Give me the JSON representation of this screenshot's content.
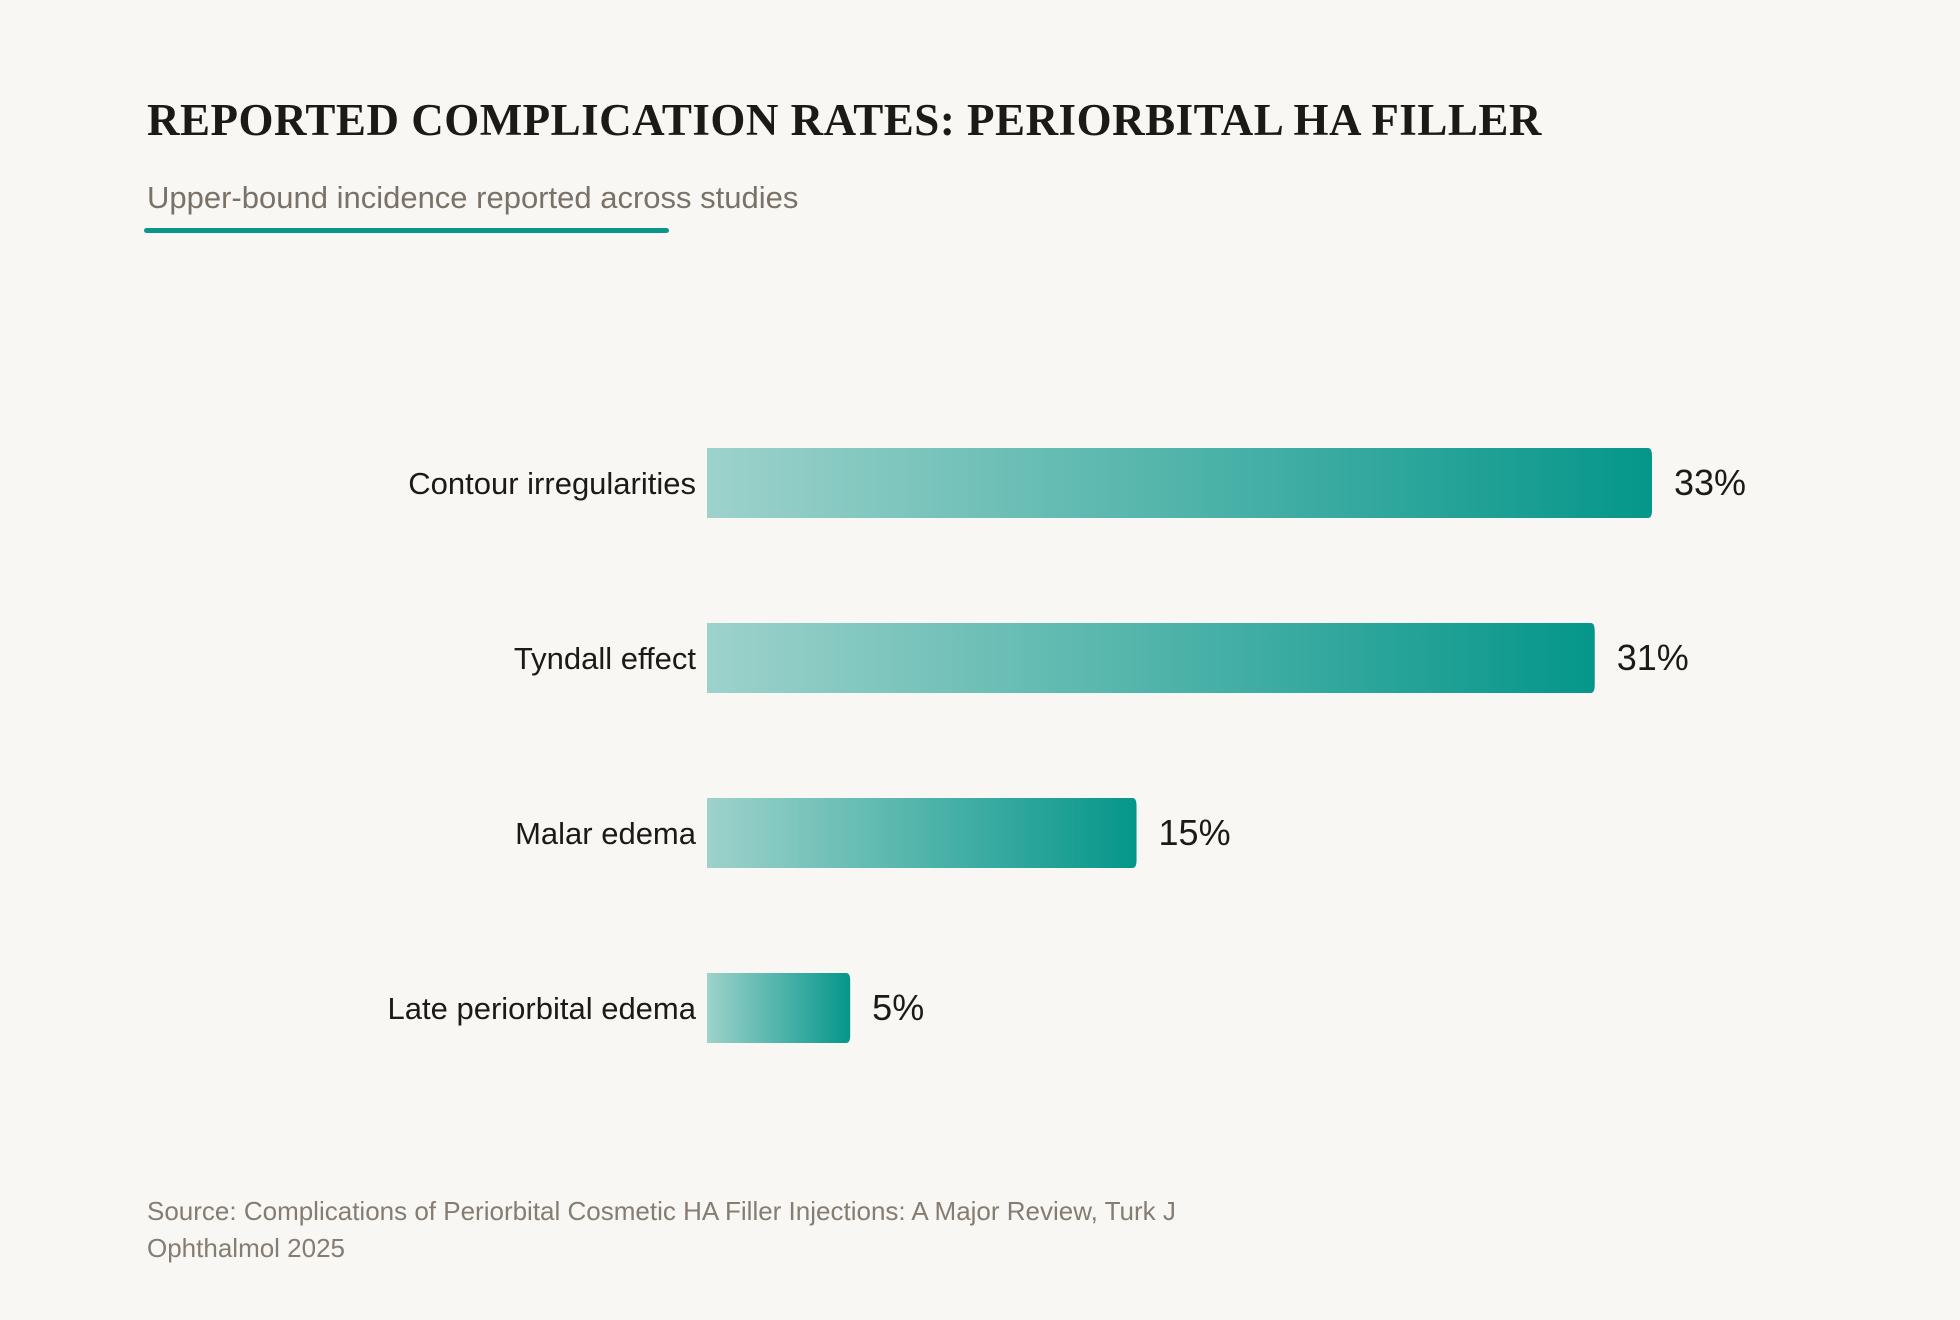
{
  "chart_data": {
    "type": "bar",
    "orientation": "horizontal",
    "title": "REPORTED COMPLICATION RATES: PERIORBITAL HA FILLER",
    "subtitle": "Upper-bound incidence reported across studies",
    "categories": [
      "Contour irregularities",
      "Tyndall effect",
      "Malar edema",
      "Late periorbital edema"
    ],
    "values": [
      33,
      31,
      15,
      5
    ],
    "value_labels": [
      "33%",
      "31%",
      "15%",
      "5%"
    ],
    "unit": "%",
    "xlim": [
      0,
      33
    ],
    "grid": false,
    "legend": "none",
    "source": "Source: Complications of Periorbital Cosmetic HA Filler Injections: A Major Review, Turk J Ophthalmol 2025"
  },
  "colors": {
    "bar_start": "#9dd2cb",
    "bar_end": "#05968a",
    "accent": "#0a968a",
    "text": "#1c1a17",
    "muted": "#7a7167",
    "background": "#f8f7f4"
  }
}
